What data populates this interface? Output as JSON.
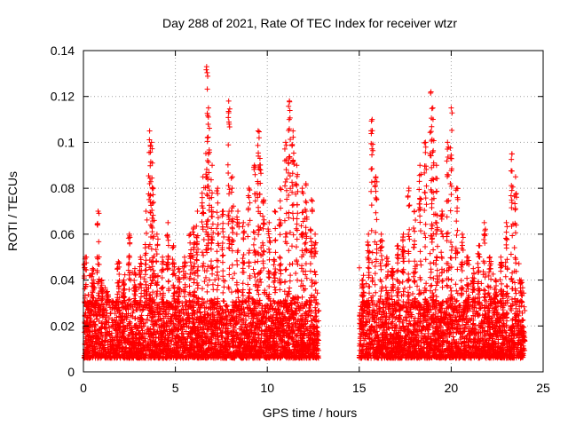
{
  "chart_data": {
    "type": "scatter",
    "title": "Day 288 of 2021, Rate Of TEC Index for receiver wtzr",
    "xlabel": "GPS time / hours",
    "ylabel": "ROTI / TECUs",
    "xlim": [
      0,
      25
    ],
    "ylim": [
      0,
      0.14
    ],
    "xticks": [
      0,
      5,
      10,
      15,
      20,
      25
    ],
    "xtick_labels": [
      "0",
      "5",
      "10",
      "15",
      "20",
      "25"
    ],
    "yticks": [
      0,
      0.02,
      0.04,
      0.06,
      0.08,
      0.1,
      0.12,
      0.14
    ],
    "ytick_labels": [
      "0",
      "0.02",
      "0.04",
      "0.06",
      "0.08",
      "0.1",
      "0.12",
      "0.14"
    ],
    "grid": true,
    "marker": "plus",
    "series": [
      {
        "name": "ROTI",
        "color": "#ff0000",
        "description": "dense band 0.005-0.03 from 0-12.8 h and 15-24 h, gap 12.8-15 h",
        "x": [
          0.1,
          0.3,
          0.5,
          0.8,
          1.0,
          1.3,
          1.6,
          1.9,
          2.2,
          2.5,
          2.8,
          3.1,
          3.4,
          3.6,
          3.7,
          3.8,
          4.0,
          4.3,
          4.6,
          4.9,
          5.2,
          5.5,
          5.8,
          6.0,
          6.2,
          6.5,
          6.7,
          6.8,
          7.0,
          7.3,
          7.6,
          7.9,
          8.1,
          8.4,
          8.7,
          9.0,
          9.3,
          9.5,
          9.6,
          9.8,
          10.1,
          10.4,
          10.7,
          11.0,
          11.2,
          11.4,
          11.6,
          11.9,
          12.1,
          12.4,
          12.6,
          15.2,
          15.5,
          15.7,
          15.9,
          16.2,
          16.5,
          16.8,
          17.1,
          17.4,
          17.7,
          18.0,
          18.3,
          18.6,
          18.9,
          19.0,
          19.2,
          19.5,
          19.8,
          20.0,
          20.3,
          20.6,
          20.9,
          21.2,
          21.5,
          21.8,
          22.1,
          22.4,
          22.7,
          23.0,
          23.3,
          23.5,
          23.8
        ],
        "y": [
          0.05,
          0.03,
          0.045,
          0.07,
          0.04,
          0.035,
          0.03,
          0.048,
          0.04,
          0.06,
          0.045,
          0.05,
          0.07,
          0.105,
          0.1,
          0.08,
          0.06,
          0.05,
          0.065,
          0.055,
          0.045,
          0.05,
          0.06,
          0.063,
          0.07,
          0.085,
          0.133,
          0.115,
          0.09,
          0.08,
          0.07,
          0.118,
          0.085,
          0.07,
          0.065,
          0.08,
          0.09,
          0.105,
          0.093,
          0.075,
          0.065,
          0.07,
          0.08,
          0.1,
          0.118,
          0.105,
          0.09,
          0.08,
          0.082,
          0.075,
          0.06,
          0.04,
          0.06,
          0.11,
          0.085,
          0.06,
          0.05,
          0.045,
          0.055,
          0.06,
          0.08,
          0.07,
          0.09,
          0.1,
          0.122,
          0.115,
          0.09,
          0.07,
          0.1,
          0.115,
          0.08,
          0.06,
          0.05,
          0.045,
          0.055,
          0.065,
          0.05,
          0.04,
          0.05,
          0.065,
          0.095,
          0.085,
          0.04
        ]
      }
    ]
  }
}
